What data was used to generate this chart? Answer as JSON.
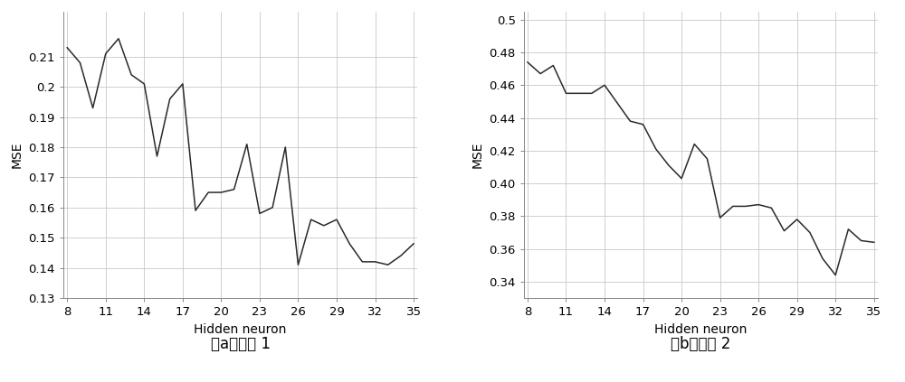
{
  "plot1": {
    "x": [
      8,
      9,
      10,
      11,
      12,
      13,
      14,
      15,
      16,
      17,
      18,
      19,
      20,
      21,
      22,
      23,
      24,
      25,
      26,
      27,
      28,
      29,
      30,
      31,
      32,
      33,
      34,
      35
    ],
    "y": [
      0.213,
      0.208,
      0.193,
      0.211,
      0.216,
      0.204,
      0.201,
      0.177,
      0.196,
      0.201,
      0.159,
      0.165,
      0.165,
      0.166,
      0.181,
      0.158,
      0.16,
      0.18,
      0.141,
      0.156,
      0.154,
      0.156,
      0.148,
      0.142,
      0.142,
      0.141,
      0.144,
      0.148
    ],
    "ylabel": "MSE",
    "xlabel": "Hidden neuron",
    "ylim": [
      0.13,
      0.225
    ],
    "yticks": [
      0.13,
      0.14,
      0.15,
      0.16,
      0.17,
      0.18,
      0.19,
      0.2,
      0.21
    ],
    "ytick_labels": [
      "0.13",
      "0.14",
      "0.15",
      "0.16",
      "0.17",
      "0.18",
      "0.19",
      "0.2",
      "0.21"
    ],
    "xticks": [
      8,
      11,
      14,
      17,
      20,
      23,
      26,
      29,
      32,
      35
    ],
    "caption": "（a）模型 1"
  },
  "plot2": {
    "x": [
      8,
      9,
      10,
      11,
      12,
      13,
      14,
      15,
      16,
      17,
      18,
      19,
      20,
      21,
      22,
      23,
      24,
      25,
      26,
      27,
      28,
      29,
      30,
      31,
      32,
      33,
      34,
      35
    ],
    "y": [
      0.474,
      0.467,
      0.472,
      0.455,
      0.455,
      0.455,
      0.46,
      0.449,
      0.438,
      0.436,
      0.421,
      0.411,
      0.403,
      0.424,
      0.415,
      0.379,
      0.386,
      0.386,
      0.387,
      0.385,
      0.371,
      0.378,
      0.37,
      0.354,
      0.344,
      0.372,
      0.365,
      0.364
    ],
    "ylabel": "MSE",
    "xlabel": "Hidden neuron",
    "ylim": [
      0.33,
      0.505
    ],
    "yticks": [
      0.34,
      0.36,
      0.38,
      0.4,
      0.42,
      0.44,
      0.46,
      0.48,
      0.5
    ],
    "ytick_labels": [
      "0.34",
      "0.36",
      "0.38",
      "0.40",
      "0.42",
      "0.44",
      "0.46",
      "0.48",
      "0.5"
    ],
    "xticks": [
      8,
      11,
      14,
      17,
      20,
      23,
      26,
      29,
      32,
      35
    ],
    "caption": "（b）模型 2"
  },
  "line_color": "#2a2a2a",
  "line_width": 1.1,
  "grid_color": "#c8c8c8",
  "bg_color": "#ffffff",
  "caption_fontsize": 12,
  "axis_label_fontsize": 10,
  "tick_fontsize": 9.5
}
